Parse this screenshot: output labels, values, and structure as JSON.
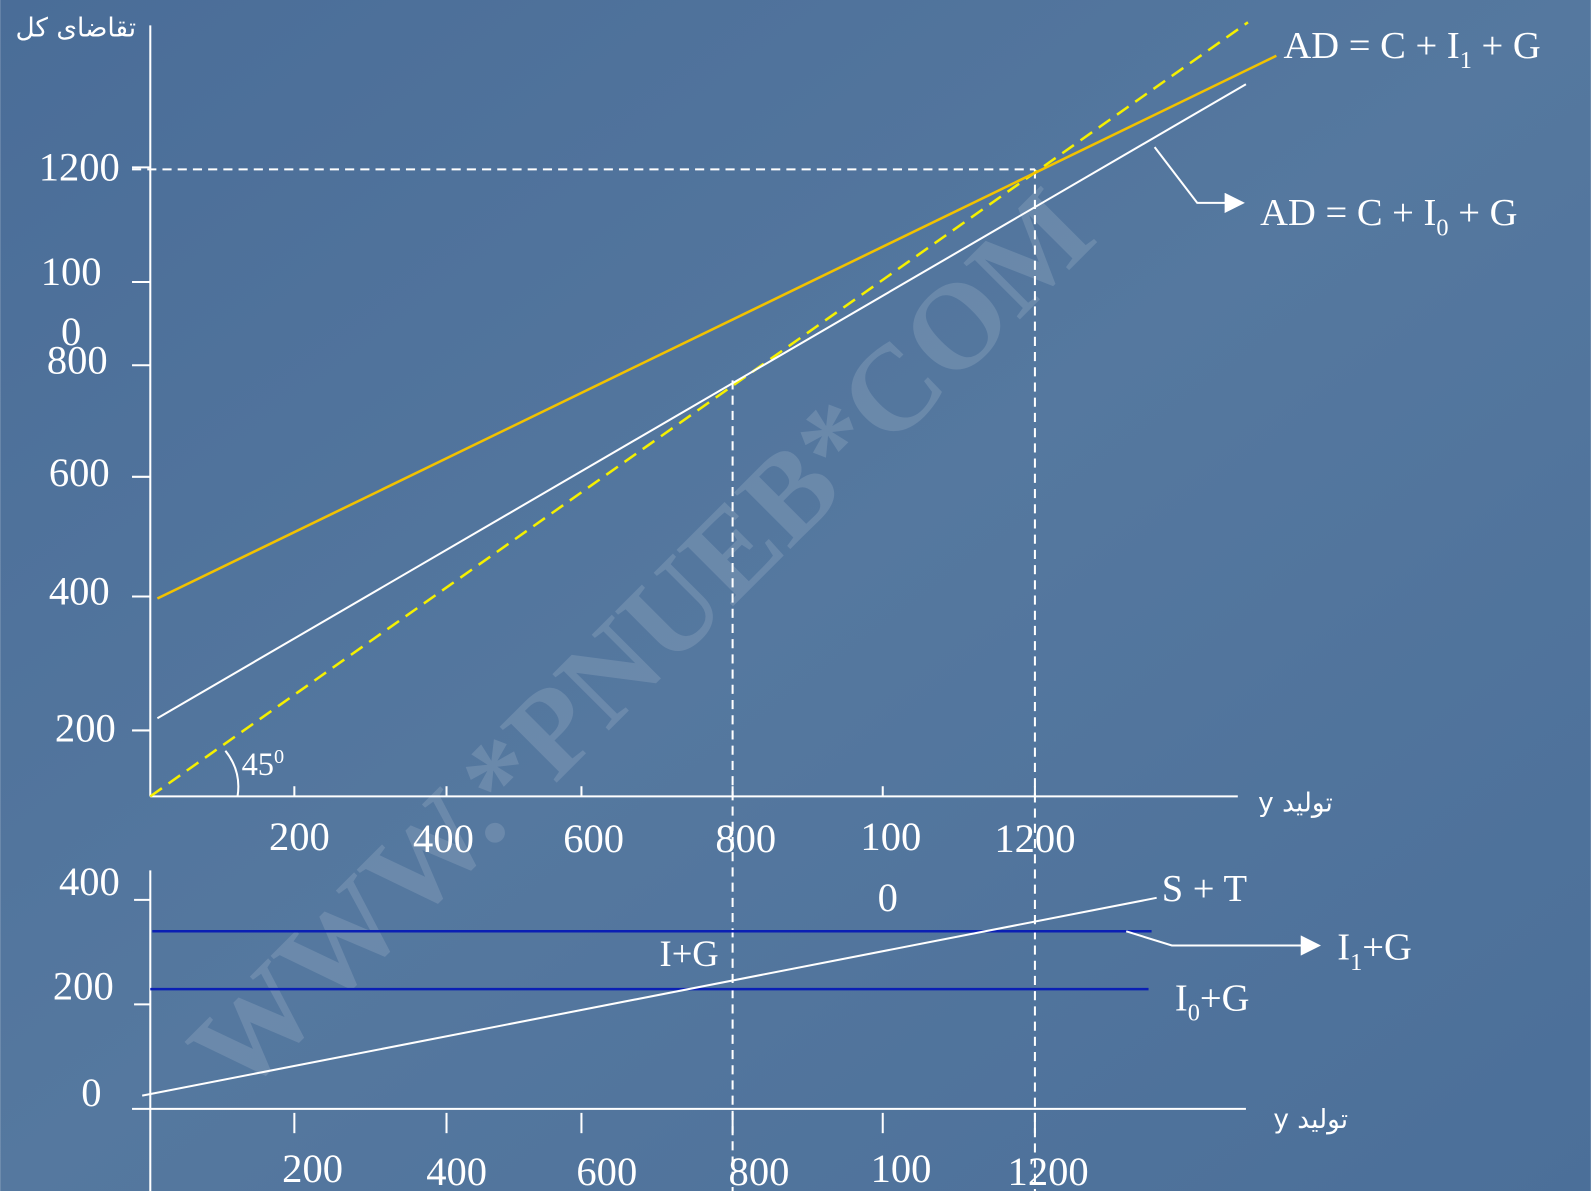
{
  "top": {
    "y_axis_title": "تقاضای کل",
    "y_tick_labels": [
      "1200",
      "100",
      "0",
      "800",
      "600",
      "400",
      "200"
    ],
    "x_tick_labels": [
      "200",
      "400",
      "600",
      "800",
      "100",
      "0",
      "1200"
    ],
    "x_axis_title": "y تولید",
    "angle_label": {
      "base": "45",
      "sup": "0"
    },
    "ad1_label": [
      "AD = C + I",
      "1",
      " + G"
    ],
    "ad0_label": [
      "AD = C + I",
      "0",
      " + G"
    ]
  },
  "bottom": {
    "y_tick_labels": [
      "400",
      "200",
      "0"
    ],
    "x_tick_labels": [
      "200",
      "400",
      "600",
      "800",
      "100",
      "1200"
    ],
    "x_axis_title": "y تولید",
    "st_label": "S + T",
    "i1g_label": [
      "I",
      "1",
      "+G"
    ],
    "ig_label": "I+G",
    "i0g_label": [
      "I",
      "0",
      "+G"
    ]
  },
  "watermark": "WWW.*PNUEB*COM"
}
